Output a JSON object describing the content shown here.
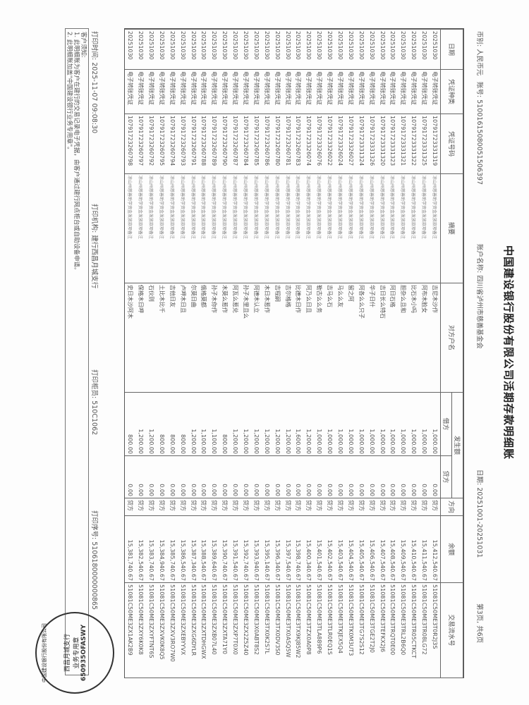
{
  "title": "中国建设银行股份有限公司活期存款明细账",
  "meta": {
    "currency": "币别: 人民币元",
    "account": "账号: 51001615080051506397",
    "account_name": "账户名称: 四川省泸州市慈善基金会",
    "date_range": "日期: 20251001-20251031",
    "page": "第3页, 共6页"
  },
  "headers": {
    "date": "日期",
    "voucher_type": "凭证种类",
    "voucher_no": "凭证号码",
    "summary": "摘要",
    "counterparty": "对方户名",
    "amount": "发生额",
    "debit": "借方",
    "credit": "贷方",
    "direction": "方向",
    "balance": "余额",
    "serial": "交易流水号"
  },
  "rows": [
    {
      "date": "20251030",
      "type": "电子转账凭证",
      "no": "10791723331319",
      "summary": "凉山州慈善助学资金发放款项备注",
      "party": "吉尼木沙作",
      "debit": "1,000.00",
      "credit": "0.00",
      "dir": "贷方",
      "balance": "15,412,540.67",
      "serial": "51081C50ME3T0R2J3S"
    },
    {
      "date": "20251030",
      "type": "电子转账凭证",
      "no": "10791723331325",
      "summary": "凉山州慈善助学资金发放款项备注",
      "party": "阿布木脸女",
      "debit": "1,000.00",
      "credit": "0.00",
      "dir": "贷方",
      "balance": "15,411,540.67",
      "serial": "51081C50ME3TR08LG72"
    },
    {
      "date": "20251030",
      "type": "电子转账凭证",
      "no": "10791723331322",
      "summary": "凉山州慈善助学资金发放款项备注",
      "party": "比石木小吗",
      "debit": "1,000.00",
      "credit": "0.00",
      "dir": "贷方",
      "balance": "15,410,540.67",
      "serial": "51081C50ME3TR05CTKCT"
    },
    {
      "date": "20251030",
      "type": "电子转账凭证",
      "no": "10791723331321",
      "summary": "凉山州慈善助学资金发放款项备注",
      "party": "胆杂么且和",
      "debit": "1,000.00",
      "credit": "0.00",
      "dir": "贷方",
      "balance": "15,409,540.67",
      "serial": "51081C50ME3TRL2B6Q0"
    },
    {
      "date": "20251030",
      "type": "电子转账凭证",
      "no": "10791723331323",
      "summary": "凉山州慈善助学资金发放款项备注",
      "party": "阿日石格",
      "debit": "1,000.00",
      "credit": "0.00",
      "dir": "贷方",
      "balance": "15,408,540.67",
      "serial": "51081C50ME3TRQT0E00"
    },
    {
      "date": "20251030",
      "type": "电子转账凭证",
      "no": "10791723331320",
      "summary": "凉山州慈善助学资金发放款项备注",
      "party": "吉日长么特石",
      "debit": "1,000.00",
      "credit": "0.00",
      "dir": "贷方",
      "balance": "15,407,540.67",
      "serial": "51081C50ME3TEFKX2J6"
    },
    {
      "date": "20251030",
      "type": "电子转账凭证",
      "no": "10791723331326",
      "summary": "凉山州慈善助学资金发放款项备注",
      "party": "华子日什",
      "debit": "1,000.00",
      "credit": "0.00",
      "dir": "贷方",
      "balance": "15,406,540.67",
      "serial": "51081C50ME3TGE2T2J0"
    },
    {
      "date": "20251030",
      "type": "电子转账凭证",
      "no": "10791723331324",
      "summary": "凉山州慈善助学资金发放款项备注",
      "party": "阿各么么只子",
      "debit": "1,000.00",
      "credit": "0.00",
      "dir": "贷方",
      "balance": "15,405,540.67",
      "serial": "51081C50ME3TG7S2S12"
    },
    {
      "date": "20251030",
      "type": "电子转账凭证",
      "no": "10791723326027",
      "summary": "凉山州慈善助学资金发放款项备注",
      "party": "留之阿",
      "debit": "1,000.00",
      "credit": "0.00",
      "dir": "贷方",
      "balance": "15,404,540.67",
      "serial": "51081C50ME3TK0M3UT3"
    },
    {
      "date": "20251030",
      "type": "电子转账凭证",
      "no": "10791723326024",
      "summary": "凉山州慈善助学资金发放款项备注",
      "party": "马么么友",
      "debit": "1,000.00",
      "credit": "0.00",
      "dir": "贷方",
      "balance": "15,403,540.67",
      "serial": "51081C50ME3TKJEX5Q4"
    },
    {
      "date": "20251030",
      "type": "电子转账凭证",
      "no": "10791723326022",
      "summary": "凉山州慈善助学资金发放款项备注",
      "party": "吉马么石",
      "debit": "1,000.00",
      "credit": "0.00",
      "dir": "贷方",
      "balance": "15,402,540.67",
      "serial": "51081C50ME3TLR0EQ1S"
    },
    {
      "date": "20251030",
      "type": "电子转账凭证",
      "no": "10791723326076",
      "summary": "凉山州慈善助学资金发放款项备注",
      "party": "勒古么么务",
      "debit": "1,000.00",
      "credit": "0.00",
      "dir": "贷方",
      "balance": "15,401,540.67",
      "serial": "51081C50ME3TLA889P6"
    },
    {
      "date": "20251030",
      "type": "电子转账凭证",
      "no": "10791723326074",
      "summary": "凉山州慈善助学资金发放款项备注",
      "party": "阿乃么日且",
      "debit": "1,200.00",
      "credit": "0.00",
      "dir": "贷方",
      "balance": "15,400,340.67",
      "serial": "51081C50ME3TZX0A0P8"
    },
    {
      "date": "20251030",
      "type": "电子转账凭证",
      "no": "10791723260783",
      "summary": "凉山州慈善助学资金发放款项备注",
      "party": "比德木日作",
      "debit": "1,600.00",
      "credit": "0.00",
      "dir": "贷方",
      "balance": "15,398,740.67",
      "serial": "51081C50ME3TX9KJ85W2"
    },
    {
      "date": "20251030",
      "type": "电子转账凭证",
      "no": "10791723260781",
      "summary": "凉山州慈善助学资金发放款项备注",
      "party": "吉尔格格",
      "debit": "1,200.00",
      "credit": "0.00",
      "dir": "贷方",
      "balance": "15,397,540.67",
      "serial": "51081C50ME3TX0ASQ5W"
    },
    {
      "date": "20251030",
      "type": "电子转账凭证",
      "no": "10791723260780",
      "summary": "凉山州慈善助学资金发放款项备注",
      "party": "吉程嗣",
      "debit": "1,200.00",
      "credit": "0.00",
      "dir": "贷方",
      "balance": "15,396,340.67",
      "serial": "51081C50ME3TX0DV3S0"
    },
    {
      "date": "20251030",
      "type": "电子转账凭证",
      "no": "10791723260786",
      "summary": "凉山州慈善助学资金发放款项备注",
      "party": "木日木惹作",
      "debit": "1,200.00",
      "credit": "0.00",
      "dir": "贷方",
      "balance": "15,395,140.67",
      "serial": "51081C50ME3TX0K2S7L"
    },
    {
      "date": "20251030",
      "type": "电子转账凭证",
      "no": "10791723260785",
      "summary": "凉山州慈善助学资金发放款项备注",
      "party": "阿德木认立",
      "debit": "1,200.00",
      "credit": "0.00",
      "dir": "贷方",
      "balance": "15,393,940.67",
      "serial": "51081C50ME3X0ABT8S2"
    },
    {
      "date": "20251030",
      "type": "电子转账凭证",
      "no": "10791723260784",
      "summary": "凉山州慈善助学资金发放款项备注",
      "party": "孙子木里且么",
      "debit": "1,200.00",
      "credit": "0.00",
      "dir": "贷方",
      "balance": "15,392,740.67",
      "serial": "51081C50ME3ZX2Z5Z40"
    },
    {
      "date": "20251030",
      "type": "电子转账凭证",
      "no": "10791723260787",
      "summary": "凉山州慈善助学资金发放款项备注",
      "party": "阿瓦么惹兑",
      "debit": "1,200.00",
      "credit": "0.00",
      "dir": "贷方",
      "balance": "15,391,540.67",
      "serial": "51081C50ME3ZXP7T0X0"
    },
    {
      "date": "20251030",
      "type": "电子转账凭证",
      "no": "10791723260790",
      "summary": "凉山州慈善助学资金发放款项备注",
      "party": "木莫么惹作",
      "debit": "800.00",
      "credit": "0.00",
      "dir": "贷方",
      "balance": "15,390,740.67",
      "serial": "51081C50ME3ZXTA71Y0"
    },
    {
      "date": "20251030",
      "type": "电子转账凭证",
      "no": "10791723260789",
      "summary": "凉山州慈善助学资金发放款项备注",
      "party": "孙子木你作",
      "debit": "1,100.00",
      "credit": "0.00",
      "dir": "贷方",
      "balance": "15,389,640.67",
      "serial": "51081C50ME3ZXB07L40"
    },
    {
      "date": "20251030",
      "type": "电子转账凭证",
      "no": "10791723260788",
      "summary": "凉山州慈善助学资金发放款项备注",
      "party": "俄格莫都",
      "debit": "1,100.00",
      "credit": "0.00",
      "dir": "贷方",
      "balance": "15,388,540.67",
      "serial": "51081C50ME3ZXTDHGWX"
    },
    {
      "date": "20251030",
      "type": "电子转账凭证",
      "no": "10791723260791",
      "summary": "凉山州慈善助学资金发放款项备注",
      "party": "尔莫日曲",
      "debit": "1,200.00",
      "credit": "0.00",
      "dir": "贷方",
      "balance": "15,387,340.67",
      "serial": "51081C50ME3ZXG6DYLR"
    },
    {
      "date": "20251030",
      "type": "电子转账凭证",
      "no": "10791723260793",
      "summary": "凉山州慈善助学资金发放款项备注",
      "party": "卢呷木日且",
      "debit": "800.00",
      "credit": "0.00",
      "dir": "贷方",
      "balance": "15,386,540.67",
      "serial": "51081C50ME3ZXEBYYVX"
    },
    {
      "date": "20251030",
      "type": "电子转账凭证",
      "no": "10791723260794",
      "summary": "凉山州慈善助学资金发放款项备注",
      "party": "吉他日友",
      "debit": "800.00",
      "credit": "0.00",
      "dir": "贷方",
      "balance": "15,385,740.67",
      "serial": "51081C50ME3ZXV3RO7W0"
    },
    {
      "date": "20251030",
      "type": "电子转账凭证",
      "no": "10791723260795",
      "summary": "凉山州慈善助学资金发放款项备注",
      "party": "土比木比千",
      "debit": "800.00",
      "credit": "0.00",
      "dir": "贷方",
      "balance": "15,384,940.67",
      "serial": "51081C50ME3ZXVK0K8Q5"
    },
    {
      "date": "20251030",
      "type": "电子转账凭证",
      "no": "10791723260792",
      "summary": "凉山州慈善助学资金发放款项备注",
      "party": "石伙则",
      "debit": "1,200.00",
      "credit": "0.00",
      "dir": "贷方",
      "balance": "15,383,740.67",
      "serial": "51081C50ME3ZXYFTNT6S"
    },
    {
      "date": "20251030",
      "type": "电子转账凭证",
      "no": "10791723260797",
      "summary": "凉山州慈善助学资金发放款项备注",
      "party": "保格木日呷",
      "debit": "1,200.00",
      "credit": "0.00",
      "dir": "贷方",
      "balance": "15,382,540.67",
      "serial": "51081C50ME3ZXY6K0K8"
    },
    {
      "date": "20251030",
      "type": "电子转账凭证",
      "no": "10791723260798",
      "summary": "凉山州慈善助学资金发放款项备注",
      "party": "史日木沙阿木",
      "debit": "800.00",
      "credit": "0.00",
      "dir": "贷方",
      "balance": "15,381,740.67",
      "serial": "51081C50ME3ZX1AK2B9"
    }
  ],
  "footer": {
    "print_time": "打印时间: 2025-11-07 09:08:30",
    "print_org": "打印机构: 建行西昌月城支行",
    "print_teller": "打印柜员: 510C1062",
    "print_serial": "打印序号: 5106180000000865"
  },
  "notes": {
    "heading": "客户须知:",
    "line1": "1. 此明细账为客户在建行的交易记录电子凭据，由客户通过建行网点柜台或自助设备申请。",
    "line2": "2. 此明细账加盖\"中国建设银行业务专用章\"。"
  },
  "stamp": {
    "ring": "中国建设银行股份有限公司",
    "branch": "西昌月城支行",
    "label": "业务专用章",
    "code": "650935OFASWY"
  }
}
